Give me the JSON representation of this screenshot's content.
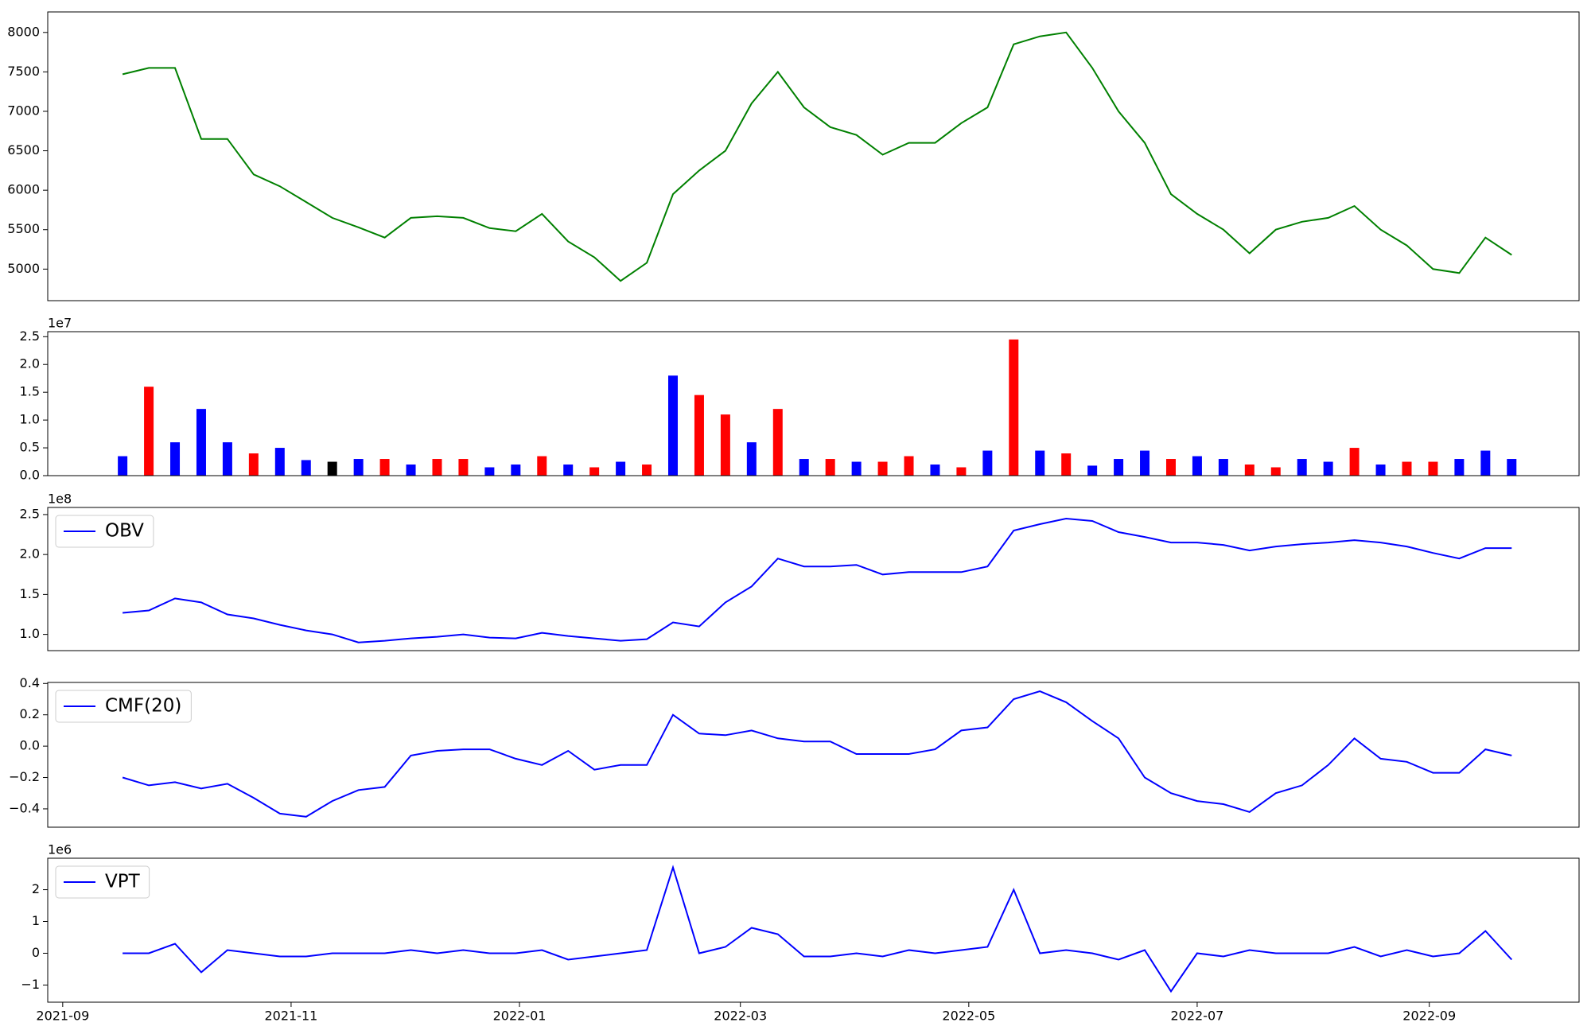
{
  "chart_data": [
    {
      "type": "line",
      "color": "#008000",
      "x": [
        "2021-09-17",
        "2021-09-24",
        "2021-10-01",
        "2021-10-08",
        "2021-10-15",
        "2021-10-22",
        "2021-10-29",
        "2021-11-05",
        "2021-11-12",
        "2021-11-19",
        "2021-11-26",
        "2021-12-03",
        "2021-12-10",
        "2021-12-17",
        "2021-12-24",
        "2021-12-31",
        "2022-01-07",
        "2022-01-14",
        "2022-01-21",
        "2022-01-28",
        "2022-02-04",
        "2022-02-11",
        "2022-02-18",
        "2022-02-25",
        "2022-03-04",
        "2022-03-11",
        "2022-03-18",
        "2022-03-25",
        "2022-04-01",
        "2022-04-08",
        "2022-04-15",
        "2022-04-22",
        "2022-04-29",
        "2022-05-06",
        "2022-05-13",
        "2022-05-20",
        "2022-05-27",
        "2022-06-03",
        "2022-06-10",
        "2022-06-17",
        "2022-06-24",
        "2022-07-01",
        "2022-07-08",
        "2022-07-15",
        "2022-07-22",
        "2022-07-29",
        "2022-08-05",
        "2022-08-12",
        "2022-08-19",
        "2022-08-26",
        "2022-09-02",
        "2022-09-09",
        "2022-09-16",
        "2022-09-23"
      ],
      "values": [
        7470,
        7550,
        7550,
        6650,
        6650,
        6200,
        6050,
        5850,
        5650,
        5530,
        5400,
        5650,
        5670,
        5650,
        5520,
        5480,
        5700,
        5350,
        5150,
        4850,
        5080,
        5950,
        6250,
        6500,
        7100,
        7500,
        7050,
        6800,
        6700,
        6450,
        6600,
        6600,
        6850,
        7050,
        7850,
        7950,
        8000,
        7550,
        7000,
        6600,
        5950,
        5700,
        5500,
        5200,
        5500,
        5600,
        5650,
        5800,
        5500,
        5300,
        5000,
        4950,
        5400,
        5180
      ],
      "xlim": [
        "2021-08-28",
        "2022-10-11"
      ],
      "ylim": [
        4600,
        8260
      ],
      "yticks": [
        5000,
        5500,
        6000,
        6500,
        7000,
        7500,
        8000
      ]
    },
    {
      "type": "bar",
      "yaxis_offset": "1e7",
      "x": [
        "2021-09-17",
        "2021-09-24",
        "2021-10-01",
        "2021-10-08",
        "2021-10-15",
        "2021-10-22",
        "2021-10-29",
        "2021-11-05",
        "2021-11-12",
        "2021-11-19",
        "2021-11-26",
        "2021-12-03",
        "2021-12-10",
        "2021-12-17",
        "2021-12-24",
        "2021-12-31",
        "2022-01-07",
        "2022-01-14",
        "2022-01-21",
        "2022-01-28",
        "2022-02-04",
        "2022-02-11",
        "2022-02-18",
        "2022-02-25",
        "2022-03-04",
        "2022-03-11",
        "2022-03-18",
        "2022-03-25",
        "2022-04-01",
        "2022-04-08",
        "2022-04-15",
        "2022-04-22",
        "2022-04-29",
        "2022-05-06",
        "2022-05-13",
        "2022-05-20",
        "2022-05-27",
        "2022-06-03",
        "2022-06-10",
        "2022-06-17",
        "2022-06-24",
        "2022-07-01",
        "2022-07-08",
        "2022-07-15",
        "2022-07-22",
        "2022-07-29",
        "2022-08-05",
        "2022-08-12",
        "2022-08-19",
        "2022-08-26",
        "2022-09-02",
        "2022-09-09",
        "2022-09-16",
        "2022-09-23"
      ],
      "values": [
        3500000,
        16000000,
        6000000,
        12000000,
        6000000,
        4000000,
        5000000,
        2800000,
        2500000,
        3000000,
        3000000,
        2000000,
        3000000,
        3000000,
        1500000,
        2000000,
        3500000,
        2000000,
        1500000,
        2500000,
        2000000,
        18000000,
        14500000,
        11000000,
        6000000,
        12000000,
        3000000,
        3000000,
        2500000,
        2500000,
        3500000,
        2000000,
        1500000,
        4500000,
        24500000,
        4500000,
        4000000,
        1800000,
        3000000,
        4500000,
        3000000,
        3500000,
        3000000,
        2000000,
        1500000,
        3000000,
        2500000,
        5000000,
        2000000,
        2500000,
        2500000,
        3000000,
        4500000,
        3000000
      ],
      "colors": [
        "#0000ff",
        "#ff0000",
        "#0000ff",
        "#0000ff",
        "#0000ff",
        "#ff0000",
        "#0000ff",
        "#0000ff",
        "#000000",
        "#0000ff",
        "#ff0000",
        "#0000ff",
        "#ff0000",
        "#ff0000",
        "#0000ff",
        "#0000ff",
        "#ff0000",
        "#0000ff",
        "#ff0000",
        "#0000ff",
        "#ff0000",
        "#0000ff",
        "#ff0000",
        "#ff0000",
        "#0000ff",
        "#ff0000",
        "#0000ff",
        "#ff0000",
        "#0000ff",
        "#ff0000",
        "#ff0000",
        "#0000ff",
        "#ff0000",
        "#0000ff",
        "#ff0000",
        "#0000ff",
        "#ff0000",
        "#0000ff",
        "#0000ff",
        "#0000ff",
        "#ff0000",
        "#0000ff",
        "#0000ff",
        "#ff0000",
        "#ff0000",
        "#0000ff",
        "#0000ff",
        "#ff0000",
        "#0000ff",
        "#ff0000",
        "#ff0000",
        "#0000ff",
        "#0000ff",
        "#0000ff"
      ],
      "xlim": [
        "2021-08-28",
        "2022-10-11"
      ],
      "ylim": [
        0,
        25900000
      ],
      "yticks": [
        {
          "value": 0,
          "label": "0.0"
        },
        {
          "value": 5000000,
          "label": "0.5"
        },
        {
          "value": 10000000,
          "label": "1.0"
        },
        {
          "value": 15000000,
          "label": "1.5"
        },
        {
          "value": 20000000,
          "label": "2.0"
        },
        {
          "value": 25000000,
          "label": "2.5"
        }
      ]
    },
    {
      "type": "line",
      "yaxis_offset": "1e8",
      "legend": "upper left",
      "x": [
        "2021-09-17",
        "2021-09-24",
        "2021-10-01",
        "2021-10-08",
        "2021-10-15",
        "2021-10-22",
        "2021-10-29",
        "2021-11-05",
        "2021-11-12",
        "2021-11-19",
        "2021-11-26",
        "2021-12-03",
        "2021-12-10",
        "2021-12-17",
        "2021-12-24",
        "2021-12-31",
        "2022-01-07",
        "2022-01-14",
        "2022-01-21",
        "2022-01-28",
        "2022-02-04",
        "2022-02-11",
        "2022-02-18",
        "2022-02-25",
        "2022-03-04",
        "2022-03-11",
        "2022-03-18",
        "2022-03-25",
        "2022-04-01",
        "2022-04-08",
        "2022-04-15",
        "2022-04-22",
        "2022-04-29",
        "2022-05-06",
        "2022-05-13",
        "2022-05-20",
        "2022-05-27",
        "2022-06-03",
        "2022-06-10",
        "2022-06-17",
        "2022-06-24",
        "2022-07-01",
        "2022-07-08",
        "2022-07-15",
        "2022-07-22",
        "2022-07-29",
        "2022-08-05",
        "2022-08-12",
        "2022-08-19",
        "2022-08-26",
        "2022-09-02",
        "2022-09-09",
        "2022-09-16",
        "2022-09-23"
      ],
      "series": [
        {
          "name": "OBV",
          "color": "#0000ff",
          "values": [
            127000000,
            130000000,
            145000000,
            140000000,
            125000000,
            120000000,
            112000000,
            105000000,
            100000000,
            90000000,
            92000000,
            95000000,
            97000000,
            100000000,
            96000000,
            95000000,
            102000000,
            98000000,
            95000000,
            92000000,
            94000000,
            115000000,
            110000000,
            140000000,
            160000000,
            195000000,
            185000000,
            185000000,
            187000000,
            175000000,
            178000000,
            178000000,
            178000000,
            185000000,
            230000000,
            238000000,
            245000000,
            242000000,
            228000000,
            222000000,
            215000000,
            215000000,
            212000000,
            205000000,
            210000000,
            213000000,
            215000000,
            218000000,
            215000000,
            210000000,
            202000000,
            195000000,
            208000000,
            208000000
          ]
        }
      ],
      "xlim": [
        "2021-08-28",
        "2022-10-11"
      ],
      "ylim": [
        79700000,
        258900000
      ],
      "yticks": [
        {
          "value": 100000000,
          "label": "1.0"
        },
        {
          "value": 150000000,
          "label": "1.5"
        },
        {
          "value": 200000000,
          "label": "2.0"
        },
        {
          "value": 250000000,
          "label": "2.5"
        }
      ]
    },
    {
      "type": "line",
      "legend": "upper left",
      "x": [
        "2021-09-17",
        "2021-09-24",
        "2021-10-01",
        "2021-10-08",
        "2021-10-15",
        "2021-10-22",
        "2021-10-29",
        "2021-11-05",
        "2021-11-12",
        "2021-11-19",
        "2021-11-26",
        "2021-12-03",
        "2021-12-10",
        "2021-12-17",
        "2021-12-24",
        "2021-12-31",
        "2022-01-07",
        "2022-01-14",
        "2022-01-21",
        "2022-01-28",
        "2022-02-04",
        "2022-02-11",
        "2022-02-18",
        "2022-02-25",
        "2022-03-04",
        "2022-03-11",
        "2022-03-18",
        "2022-03-25",
        "2022-04-01",
        "2022-04-08",
        "2022-04-15",
        "2022-04-22",
        "2022-04-29",
        "2022-05-06",
        "2022-05-13",
        "2022-05-20",
        "2022-05-27",
        "2022-06-03",
        "2022-06-10",
        "2022-06-17",
        "2022-06-24",
        "2022-07-01",
        "2022-07-08",
        "2022-07-15",
        "2022-07-22",
        "2022-07-29",
        "2022-08-05",
        "2022-08-12",
        "2022-08-19",
        "2022-08-26",
        "2022-09-02",
        "2022-09-09",
        "2022-09-16",
        "2022-09-23"
      ],
      "series": [
        {
          "name": "CMF(20)",
          "color": "#0000ff",
          "values": [
            -0.2,
            -0.25,
            -0.23,
            -0.27,
            -0.24,
            -0.33,
            -0.43,
            -0.45,
            -0.35,
            -0.28,
            -0.26,
            -0.06,
            -0.03,
            -0.02,
            -0.02,
            -0.08,
            -0.12,
            -0.03,
            -0.15,
            -0.12,
            -0.12,
            0.2,
            0.08,
            0.07,
            0.1,
            0.05,
            0.03,
            0.03,
            -0.05,
            -0.05,
            -0.05,
            -0.02,
            0.1,
            0.12,
            0.3,
            0.35,
            0.28,
            0.16,
            0.05,
            -0.2,
            -0.3,
            -0.35,
            -0.37,
            -0.42,
            -0.3,
            -0.25,
            -0.12,
            0.05,
            -0.08,
            -0.1,
            -0.17,
            -0.17,
            -0.02,
            -0.06
          ]
        }
      ],
      "xlim": [
        "2021-08-28",
        "2022-10-11"
      ],
      "ylim": [
        -0.517,
        0.4065
      ],
      "yticks": [
        {
          "value": -0.4,
          "label": "−0.4"
        },
        {
          "value": -0.2,
          "label": "−0.2"
        },
        {
          "value": 0,
          "label": "0.0"
        },
        0.2,
        0.4
      ]
    },
    {
      "type": "line",
      "yaxis_offset": "1e6",
      "legend": "upper left",
      "x": [
        "2021-09-17",
        "2021-09-24",
        "2021-10-01",
        "2021-10-08",
        "2021-10-15",
        "2021-10-22",
        "2021-10-29",
        "2021-11-05",
        "2021-11-12",
        "2021-11-19",
        "2021-11-26",
        "2021-12-03",
        "2021-12-10",
        "2021-12-17",
        "2021-12-24",
        "2021-12-31",
        "2022-01-07",
        "2022-01-14",
        "2022-01-21",
        "2022-01-28",
        "2022-02-04",
        "2022-02-11",
        "2022-02-18",
        "2022-02-25",
        "2022-03-04",
        "2022-03-11",
        "2022-03-18",
        "2022-03-25",
        "2022-04-01",
        "2022-04-08",
        "2022-04-15",
        "2022-04-22",
        "2022-04-29",
        "2022-05-06",
        "2022-05-13",
        "2022-05-20",
        "2022-05-27",
        "2022-06-03",
        "2022-06-10",
        "2022-06-17",
        "2022-06-24",
        "2022-07-01",
        "2022-07-08",
        "2022-07-15",
        "2022-07-22",
        "2022-07-29",
        "2022-08-05",
        "2022-08-12",
        "2022-08-19",
        "2022-08-26",
        "2022-09-02",
        "2022-09-09",
        "2022-09-16",
        "2022-09-23"
      ],
      "series": [
        {
          "name": "VPT",
          "color": "#0000ff",
          "values": [
            0,
            0,
            300000,
            -600000,
            100000,
            0,
            -100000,
            -100000,
            0,
            0,
            0,
            100000,
            0,
            100000,
            0,
            0,
            100000,
            -200000,
            -100000,
            0,
            100000,
            2700000,
            0,
            200000,
            800000,
            600000,
            -100000,
            -100000,
            0,
            -100000,
            100000,
            0,
            100000,
            200000,
            2000000,
            0,
            100000,
            0,
            -200000,
            100000,
            -1200000,
            0,
            -100000,
            100000,
            0,
            0,
            0,
            200000,
            -100000,
            100000,
            -100000,
            0,
            700000,
            -200000
          ]
        }
      ],
      "xlim": [
        "2021-08-28",
        "2022-10-11"
      ],
      "ylim": [
        -1540000,
        2990000
      ],
      "yticks": [
        {
          "value": -1000000,
          "label": "−1"
        },
        {
          "value": 0,
          "label": "0"
        },
        {
          "value": 1000000,
          "label": "1"
        },
        {
          "value": 2000000,
          "label": "2"
        }
      ],
      "xticks": [
        {
          "value": "2021-09-01",
          "label": "2021-09"
        },
        {
          "value": "2021-11-01",
          "label": "2021-11"
        },
        {
          "value": "2022-01-01",
          "label": "2022-01"
        },
        {
          "value": "2022-03-01",
          "label": "2022-03"
        },
        {
          "value": "2022-05-01",
          "label": "2022-05"
        },
        {
          "value": "2022-07-01",
          "label": "2022-07"
        },
        {
          "value": "2022-09-01",
          "label": "2022-09"
        }
      ]
    }
  ]
}
